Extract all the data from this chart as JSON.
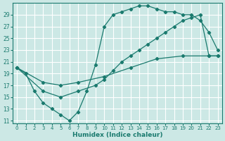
{
  "xlabel": "Humidex (Indice chaleur)",
  "background_color": "#cce8e5",
  "grid_color": "#ffffff",
  "line_color": "#1a7a6e",
  "xlim": [
    -0.5,
    23.5
  ],
  "ylim": [
    10.5,
    31
  ],
  "xticks": [
    0,
    1,
    2,
    3,
    4,
    5,
    6,
    7,
    8,
    9,
    10,
    11,
    12,
    13,
    14,
    15,
    16,
    17,
    18,
    19,
    20,
    21,
    22,
    23
  ],
  "yticks": [
    11,
    13,
    15,
    17,
    19,
    21,
    23,
    25,
    27,
    29
  ],
  "curve1_x": [
    0,
    1,
    2,
    3,
    4,
    5,
    6,
    7,
    8,
    9,
    10,
    11,
    12,
    13,
    14,
    15,
    16,
    17,
    18,
    19,
    20,
    21,
    22,
    23
  ],
  "curve1_y": [
    20,
    19,
    16,
    14,
    13,
    12,
    11,
    12.5,
    16,
    20.5,
    27,
    29,
    29.5,
    30,
    30.5,
    30.5,
    30,
    29.5,
    29.5,
    29,
    29,
    28,
    26,
    23
  ],
  "curve2_x": [
    0,
    3,
    5,
    7,
    9,
    10,
    11,
    12,
    13,
    14,
    15,
    16,
    17,
    18,
    19,
    20,
    21,
    22,
    23
  ],
  "curve2_y": [
    20,
    16,
    15,
    16,
    17,
    18,
    19.5,
    21,
    22,
    23,
    24,
    25,
    26,
    27,
    28,
    28.5,
    29,
    22,
    22
  ],
  "curve3_x": [
    0,
    3,
    5,
    7,
    10,
    13,
    16,
    19,
    22,
    23
  ],
  "curve3_y": [
    20,
    17.5,
    17,
    17.5,
    18.5,
    20,
    21.5,
    22,
    22,
    22
  ]
}
